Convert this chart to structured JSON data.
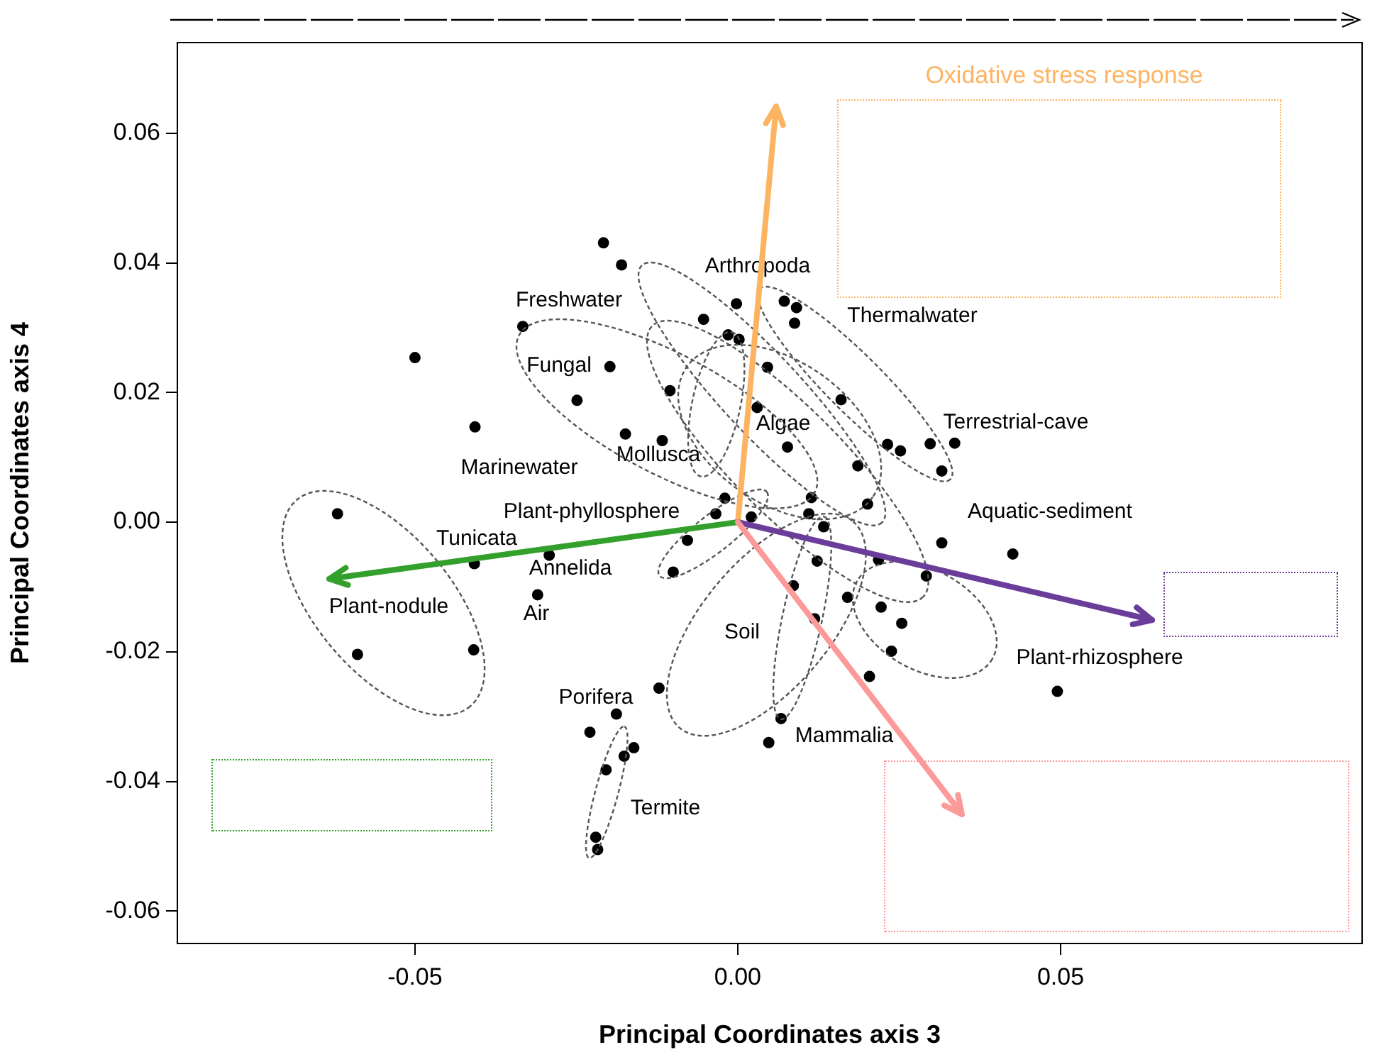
{
  "chart_data": {
    "type": "scatter",
    "xlabel": "Principal Coordinates axis 3",
    "ylabel": "Principal Coordinates axis 4",
    "xlim": [
      -0.0868,
      0.0967
    ],
    "ylim": [
      -0.065,
      0.074
    ],
    "xticks": [
      -0.05,
      {
        "value": 0,
        "label": "0.00"
      },
      0.05
    ],
    "yticks": [
      -0.06,
      -0.04,
      -0.02,
      {
        "value": 0,
        "label": "0.00"
      },
      0.02,
      0.04,
      0.06
    ],
    "grid": false,
    "legend": false,
    "marker": "circle",
    "series": [
      {
        "color": "#000000",
        "x": [
          -0.0208,
          -0.018,
          -0.0333,
          -0.05,
          -0.0198,
          -0.0105,
          -0.0249,
          -0.0407,
          -0.0174,
          -0.0117,
          -0.0053,
          -0.0002,
          -0.0015,
          0.0002,
          -0.002,
          -0.0034,
          -0.0078,
          -0.01,
          -0.062,
          -0.0408,
          -0.0292,
          -0.031,
          -0.0589,
          -0.0409,
          -0.0122,
          -0.0188,
          -0.0229,
          -0.0161,
          -0.0176,
          -0.0204,
          -0.022,
          -0.0217,
          0.0072,
          0.0091,
          0.0088,
          0.0046,
          0.016,
          0.003,
          0.0077,
          0.0232,
          0.0252,
          0.0298,
          0.0336,
          0.0316,
          0.0186,
          0.0201,
          0.0021,
          0.0114,
          0.011,
          0.0133,
          0.0316,
          0.0426,
          0.0123,
          0.0218,
          0.0292,
          0.0086,
          0.017,
          0.0222,
          0.0119,
          0.0254,
          0.0238,
          0.0204,
          0.0495,
          0.0067,
          0.0048
        ],
        "values": [
          0.0431,
          0.0397,
          0.0302,
          0.0254,
          0.024,
          0.0203,
          0.0188,
          0.0147,
          0.0136,
          0.0126,
          0.0313,
          0.0337,
          0.0289,
          0.0282,
          0.0037,
          0.0013,
          -0.0028,
          -0.0077,
          0.0013,
          -0.0064,
          -0.0051,
          -0.0112,
          -0.0204,
          -0.0197,
          -0.0256,
          -0.0296,
          -0.0324,
          -0.0348,
          -0.0361,
          -0.0382,
          -0.0486,
          -0.0505,
          0.0341,
          0.0331,
          0.0307,
          0.0239,
          0.0189,
          0.0177,
          0.0116,
          0.012,
          0.011,
          0.0121,
          0.0122,
          0.0079,
          0.0087,
          0.0028,
          0.0008,
          0.0038,
          0.0013,
          -0.0007,
          -0.0032,
          -0.0049,
          -0.006,
          -0.0058,
          -0.0083,
          -0.0098,
          -0.0116,
          -0.0131,
          -0.0149,
          -0.0156,
          -0.0199,
          -0.0238,
          -0.0261,
          -0.0303,
          -0.034
        ]
      }
    ],
    "annotations": [
      "Arthropoda",
      "Freshwater",
      "Thermalwater",
      "Fungal",
      "Terrestrial-cave",
      "Algae",
      "Marinewater",
      "Mollusca",
      "Plant-phyllosphere",
      "Aquatic-sediment",
      "Tunicata",
      "Annelida",
      "Air",
      "Plant-nodule",
      "Soil",
      "Plant-rhizosphere",
      "Porifera",
      "Mammalia",
      "Termite",
      "Oxidative stress response"
    ]
  }
}
